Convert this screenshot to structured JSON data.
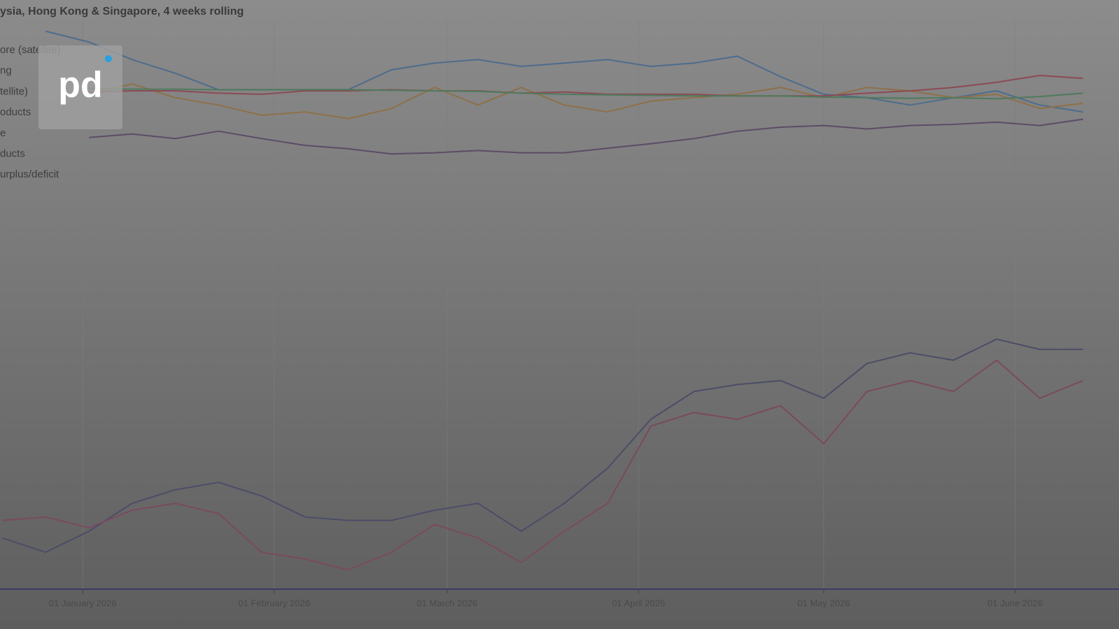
{
  "logo": "pd",
  "chart_data": {
    "type": "line",
    "title": "ysia, Hong Kong & Singapore, 4 weeks rolling",
    "x": [
      -13,
      -6,
      1,
      8,
      15,
      22,
      29,
      36,
      43,
      50,
      57,
      64,
      71,
      78,
      85,
      92,
      99,
      106,
      113,
      120,
      127,
      134,
      141,
      148,
      155,
      162
    ],
    "xlim": [
      -13.4,
      164.2
    ],
    "xticks": [
      {
        "value": 0,
        "label": "01 January 2026"
      },
      {
        "value": 31,
        "label": "01 February 2026"
      },
      {
        "value": 59,
        "label": "01 March 2026"
      },
      {
        "value": 90,
        "label": "01 April 2026"
      },
      {
        "value": 120,
        "label": "01 May 2026"
      },
      {
        "value": 151,
        "label": "01 June 2026"
      }
    ],
    "ylim": [
      0,
      100
    ],
    "grid": true,
    "series": [
      {
        "name": "ore (satellite)",
        "color": "#4d6c8c",
        "values": [
          null,
          98.2,
          96.3,
          93.2,
          90.8,
          87.9,
          87.9,
          87.9,
          87.9,
          91.4,
          92.6,
          93.2,
          92.0,
          92.6,
          93.2,
          92.0,
          92.6,
          93.8,
          90.2,
          87.1,
          86.5,
          85.2,
          86.5,
          87.7,
          85.2,
          84.0
        ]
      },
      {
        "name": "ng",
        "color": "#8e7048",
        "values": [
          null,
          null,
          87.1,
          88.9,
          86.5,
          85.2,
          83.4,
          84.0,
          82.8,
          84.6,
          88.3,
          85.2,
          88.3,
          85.2,
          84.0,
          85.9,
          86.5,
          87.1,
          88.3,
          86.5,
          88.3,
          87.7,
          86.5,
          87.1,
          84.6,
          85.5
        ]
      },
      {
        "name": "tellite)",
        "color": "#8c4a55",
        "values": [
          null,
          null,
          87.5,
          87.7,
          87.7,
          87.3,
          87.1,
          87.7,
          87.7,
          87.9,
          87.7,
          87.7,
          87.3,
          87.5,
          87.1,
          87.1,
          87.1,
          86.8,
          86.8,
          86.8,
          87.3,
          87.7,
          88.3,
          89.2,
          90.4,
          89.9
        ]
      },
      {
        "name": "oducts",
        "color": "#4f7a5c",
        "values": [
          null,
          null,
          88.1,
          88.0,
          88.0,
          87.9,
          87.9,
          87.9,
          87.9,
          87.8,
          87.7,
          87.6,
          87.3,
          87.1,
          87.0,
          86.9,
          86.8,
          86.8,
          86.8,
          86.6,
          86.5,
          86.4,
          86.5,
          86.3,
          86.7,
          87.3
        ]
      },
      {
        "name": "e",
        "color": "#5c4c66",
        "values": [
          null,
          null,
          79.5,
          80.1,
          79.3,
          80.6,
          79.3,
          78.1,
          77.5,
          76.6,
          76.8,
          77.2,
          76.8,
          76.8,
          77.6,
          78.4,
          79.3,
          80.6,
          81.3,
          81.6,
          81.0,
          81.6,
          81.8,
          82.2,
          81.6,
          82.7
        ]
      },
      {
        "name": "ducts",
        "color": "#4b4d68",
        "values": [
          9.0,
          6.5,
          10.2,
          15.1,
          17.5,
          18.8,
          16.4,
          12.7,
          12.1,
          12.1,
          13.9,
          15.1,
          10.2,
          15.1,
          21.3,
          29.9,
          34.8,
          36.0,
          36.7,
          33.6,
          39.7,
          41.6,
          40.3,
          44.0,
          42.2,
          42.2
        ]
      },
      {
        "name": "urplus/deficit",
        "color": "#7a4a5e",
        "values": [
          12.1,
          12.7,
          10.8,
          13.9,
          15.1,
          13.3,
          6.5,
          5.3,
          3.4,
          6.5,
          11.4,
          9.0,
          4.7,
          10.2,
          15.1,
          28.7,
          31.1,
          29.9,
          32.3,
          25.6,
          34.8,
          36.7,
          34.8,
          40.3,
          33.6,
          36.7
        ]
      }
    ]
  }
}
